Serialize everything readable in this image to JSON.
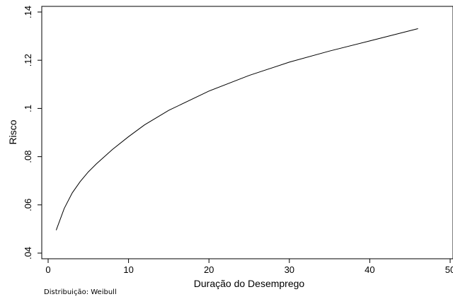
{
  "chart_data": {
    "type": "line",
    "xlabel": "Duração do Desemprego",
    "ylabel": "Risco",
    "note": "Distribuição: Weibull",
    "xlim": [
      0,
      50
    ],
    "ylim": [
      0.04,
      0.14
    ],
    "xticks": [
      0,
      10,
      20,
      30,
      40,
      50
    ],
    "xtick_labels": [
      "0",
      "10",
      "20",
      "30",
      "40",
      "50"
    ],
    "yticks": [
      0.04,
      0.06,
      0.08,
      0.1,
      0.12,
      0.14
    ],
    "ytick_labels": [
      ".04",
      ".06",
      ".08",
      ".1",
      ".12",
      ".14"
    ],
    "grid": false,
    "series": [
      {
        "color": "#000000",
        "x": [
          1,
          2,
          3,
          4,
          5,
          6,
          8,
          10,
          12,
          15,
          20,
          25,
          30,
          35,
          40,
          46
        ],
        "y": [
          0.0495,
          0.0585,
          0.065,
          0.0697,
          0.0737,
          0.077,
          0.083,
          0.0883,
          0.0932,
          0.0992,
          0.1072,
          0.1137,
          0.1192,
          0.1238,
          0.128,
          0.1331
        ]
      }
    ]
  }
}
